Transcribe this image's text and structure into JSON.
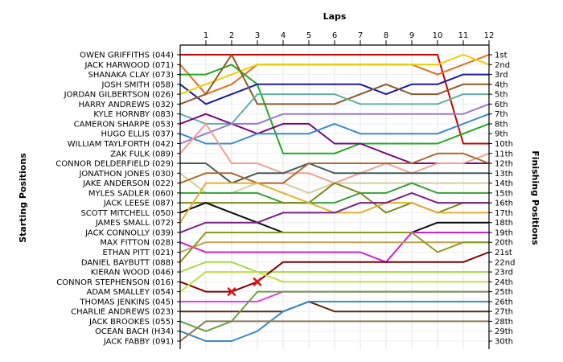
{
  "chart_data": {
    "type": "line",
    "title": "",
    "xlabel": "Laps",
    "ylabel_left": "Starting Positions",
    "ylabel_right": "Finishing Positions",
    "laps": [
      1,
      2,
      3,
      4,
      5,
      6,
      7,
      8,
      9,
      10,
      11,
      12
    ],
    "xlim": [
      0,
      12
    ],
    "ylim": [
      1,
      30
    ],
    "grid": true,
    "finishing_labels": [
      "1st",
      "2nd",
      "3rd",
      "4th",
      "5th",
      "6th",
      "7th",
      "8th",
      "9th",
      "10th",
      "11th",
      "12th",
      "13th",
      "14th",
      "15th",
      "16th",
      "17th",
      "18th",
      "19th",
      "20th",
      "21st",
      "22nd",
      "23rd",
      "24th",
      "25th",
      "26th",
      "27th",
      "28th",
      "29th",
      "30th"
    ],
    "series": [
      {
        "name": "OWEN GRIFFITHS (044)",
        "color": "#cc0000",
        "positions": [
          1,
          1,
          1,
          1,
          1,
          1,
          1,
          1,
          1,
          1,
          1,
          10,
          10
        ]
      },
      {
        "name": "JACK HARWOOD (071)",
        "color": "#e07020",
        "positions": [
          2,
          5,
          4,
          2,
          2,
          2,
          2,
          2,
          2,
          2,
          3,
          2,
          1
        ]
      },
      {
        "name": "SHANAKA CLAY (073)",
        "color": "#22aa22",
        "positions": [
          3,
          3,
          2,
          4,
          11,
          11,
          11,
          10,
          10,
          10,
          10,
          9,
          8
        ]
      },
      {
        "name": "JOSH SMITH (058)",
        "color": "#1a1aa0",
        "positions": [
          4,
          6,
          5,
          4,
          4,
          4,
          4,
          4,
          5,
          4,
          4,
          3,
          3
        ]
      },
      {
        "name": "JORDAN GILBERTSON (026)",
        "color": "#e8d000",
        "positions": [
          5,
          4,
          3,
          2,
          2,
          2,
          2,
          2,
          2,
          2,
          2,
          1,
          2
        ]
      },
      {
        "name": "HARRY ANDREWS (032)",
        "color": "#8b5a2b",
        "positions": [
          6,
          5,
          1,
          6,
          6,
          6,
          6,
          5,
          4,
          5,
          5,
          4,
          4
        ]
      },
      {
        "name": "KYLE HORNBY (083)",
        "color": "#60b0a0",
        "positions": [
          7,
          8,
          8,
          5,
          5,
          5,
          5,
          6,
          6,
          6,
          6,
          5,
          5
        ]
      },
      {
        "name": "CAMERON SHARPE (053)",
        "color": "#7a0a7a",
        "positions": [
          8,
          7,
          8,
          9,
          8,
          8,
          10,
          10,
          11,
          12,
          12,
          12,
          12
        ]
      },
      {
        "name": "HUGO ELLIS (037)",
        "color": "#3a8ad0",
        "positions": [
          9,
          10,
          10,
          9,
          9,
          9,
          8,
          9,
          9,
          9,
          9,
          8,
          7
        ]
      },
      {
        "name": "WILLIAM TAYLFORTH (042)",
        "color": "#9a7ad0",
        "positions": [
          10,
          9,
          8,
          8,
          7,
          7,
          7,
          7,
          7,
          7,
          7,
          7,
          6
        ]
      },
      {
        "name": "ZAK FULK (089)",
        "color": "#f0a090",
        "positions": [
          11,
          8,
          12,
          12,
          13,
          13,
          14,
          13,
          12,
          13,
          12,
          12,
          11
        ]
      },
      {
        "name": "CONNOR DELDERFIELD (029)",
        "color": "#455a5a",
        "positions": [
          12,
          12,
          14,
          13,
          13,
          12,
          13,
          13,
          13,
          13,
          13,
          13,
          13
        ]
      },
      {
        "name": "JONATHON JONES (030)",
        "color": "#d0d0a0",
        "positions": [
          13,
          15,
          15,
          14,
          14,
          15,
          14,
          14,
          14,
          14,
          14,
          14,
          14
        ]
      },
      {
        "name": "JAKE ANDERSON (022)",
        "color": "#b06a30",
        "positions": [
          14,
          13,
          13,
          14,
          14,
          12,
          12,
          12,
          12,
          12,
          11,
          11,
          12
        ]
      },
      {
        "name": "MYLES SADLER (060)",
        "color": "#3aa03a",
        "positions": [
          15,
          15,
          15,
          15,
          16,
          16,
          16,
          15,
          15,
          14,
          15,
          15,
          15
        ]
      },
      {
        "name": "JACK LEESE (087)",
        "color": "#7a8a20",
        "positions": [
          16,
          16,
          16,
          16,
          16,
          16,
          14,
          15,
          17,
          16,
          17,
          16,
          16
        ]
      },
      {
        "name": "SCOTT MITCHELL (050)",
        "color": "#0a0a0a",
        "positions": [
          17,
          16,
          17,
          18,
          19,
          19,
          19,
          19,
          19,
          19,
          18,
          18,
          18
        ]
      },
      {
        "name": "JAMES SMALL (072)",
        "color": "#e0b030",
        "positions": [
          18,
          14,
          14,
          14,
          15,
          16,
          17,
          17,
          16,
          16,
          17,
          17,
          17
        ]
      },
      {
        "name": "JACK CONNOLLY (039)",
        "color": "#7a2080",
        "positions": [
          19,
          18,
          18,
          18,
          17,
          17,
          17,
          16,
          16,
          15,
          16,
          16,
          16
        ]
      },
      {
        "name": "MAX FITTON (028)",
        "color": "#d020d0",
        "positions": [
          20,
          21,
          21,
          21,
          21,
          21,
          21,
          21,
          22,
          19,
          19,
          19,
          19
        ]
      },
      {
        "name": "ETHAN PITT (021)",
        "color": "#c0a050",
        "positions": [
          21,
          20,
          20,
          20,
          20,
          20,
          20,
          20,
          20,
          20,
          20,
          20,
          20
        ]
      },
      {
        "name": "DANIEL BAYBUTT (088)",
        "color": "#8a9a20",
        "positions": [
          22,
          19,
          19,
          19,
          19,
          19,
          19,
          19,
          19,
          19,
          21,
          20,
          20
        ]
      },
      {
        "name": "KIERAN WOOD (046)",
        "color": "#a8d848",
        "positions": [
          23,
          22,
          22,
          23,
          23,
          23,
          23,
          23,
          23,
          23,
          23,
          23,
          23
        ]
      },
      {
        "name": "CONNOR STEPHENSON (016)",
        "color": "#800000",
        "positions": [
          24,
          25,
          25,
          24,
          22,
          22,
          22,
          22,
          22,
          22,
          22,
          22,
          21
        ]
      },
      {
        "name": "ADAM SMALLEY (054)",
        "color": "#c0e040",
        "positions": [
          25,
          23,
          23,
          23,
          24,
          24,
          24,
          24,
          24,
          24,
          24,
          24,
          24
        ]
      },
      {
        "name": "THOMAS JENKINS (045)",
        "color": "#e040e0",
        "positions": [
          26,
          26,
          26,
          26,
          25,
          25,
          25,
          25,
          25,
          25,
          25,
          25,
          25
        ]
      },
      {
        "name": "CHARLIE ANDREWS (023)",
        "color": "#5a2a10",
        "positions": [
          27,
          27,
          27,
          27,
          27,
          26,
          27,
          27,
          27,
          27,
          27,
          27,
          27
        ]
      },
      {
        "name": "JACK BROOKES (055)",
        "color": "#6aa040",
        "positions": [
          28,
          29,
          28,
          25,
          25,
          25,
          25,
          25,
          25,
          25,
          25,
          25,
          25
        ]
      },
      {
        "name": "OCEAN BACH (H34)",
        "color": "#3a8ac0",
        "positions": [
          29,
          30,
          30,
          29,
          27,
          26,
          26,
          26,
          26,
          26,
          26,
          26,
          26
        ]
      },
      {
        "name": "JACK FABBY (091)",
        "color": "#8a7a50",
        "positions": [
          30,
          28,
          28,
          28,
          28,
          28,
          28,
          28,
          28,
          28,
          28,
          28,
          28
        ]
      }
    ],
    "retirements": [
      {
        "driver": "CONNOR STEPHENSON (016)",
        "lap": 2,
        "position": 25
      },
      {
        "driver": "KIERAN WOOD (046)",
        "lap": 3,
        "position": 24
      }
    ]
  }
}
